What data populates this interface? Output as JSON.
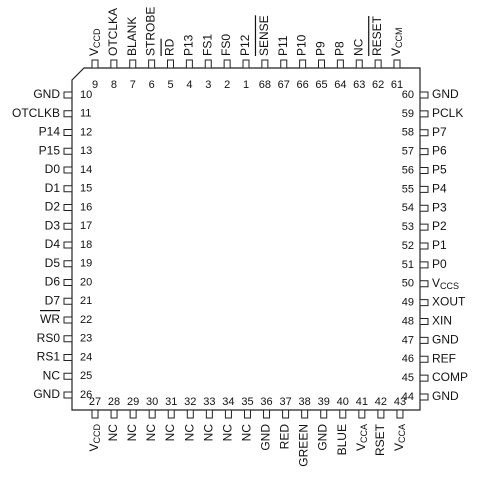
{
  "pins": {
    "top": [
      {
        "number": 9,
        "label": "V",
        "sub": "CCD"
      },
      {
        "number": 8,
        "label": "OTCLKA"
      },
      {
        "number": 7,
        "label": "BLANK"
      },
      {
        "number": 6,
        "label": "STROBE"
      },
      {
        "number": 5,
        "label": "RD",
        "overline": true
      },
      {
        "number": 4,
        "label": "P13"
      },
      {
        "number": 3,
        "label": "FS1"
      },
      {
        "number": 2,
        "label": "FS0"
      },
      {
        "number": 1,
        "label": "P12"
      },
      {
        "number": 68,
        "label": "SENSE",
        "overline": true
      },
      {
        "number": 67,
        "label": "P11"
      },
      {
        "number": 66,
        "label": "P10"
      },
      {
        "number": 65,
        "label": "P9"
      },
      {
        "number": 64,
        "label": "P8"
      },
      {
        "number": 63,
        "label": "NC"
      },
      {
        "number": 62,
        "label": "RESET",
        "overline": true
      },
      {
        "number": 61,
        "label": "V",
        "sub": "CCM"
      }
    ],
    "left": [
      {
        "number": 10,
        "label": "GND"
      },
      {
        "number": 11,
        "label": "OTCLKB"
      },
      {
        "number": 12,
        "label": "P14"
      },
      {
        "number": 13,
        "label": "P15"
      },
      {
        "number": 14,
        "label": "D0"
      },
      {
        "number": 15,
        "label": "D1"
      },
      {
        "number": 16,
        "label": "D2"
      },
      {
        "number": 17,
        "label": "D3"
      },
      {
        "number": 18,
        "label": "D4"
      },
      {
        "number": 19,
        "label": "D5"
      },
      {
        "number": 20,
        "label": "D6"
      },
      {
        "number": 21,
        "label": "D7"
      },
      {
        "number": 22,
        "label": "WR",
        "overline": true
      },
      {
        "number": 23,
        "label": "RS0"
      },
      {
        "number": 24,
        "label": "RS1"
      },
      {
        "number": 25,
        "label": "NC"
      },
      {
        "number": 26,
        "label": "GND"
      }
    ],
    "right": [
      {
        "number": 60,
        "label": "GND"
      },
      {
        "number": 59,
        "label": "PCLK"
      },
      {
        "number": 58,
        "label": "P7"
      },
      {
        "number": 57,
        "label": "P6"
      },
      {
        "number": 56,
        "label": "P5"
      },
      {
        "number": 55,
        "label": "P4"
      },
      {
        "number": 54,
        "label": "P3"
      },
      {
        "number": 53,
        "label": "P2"
      },
      {
        "number": 52,
        "label": "P1"
      },
      {
        "number": 51,
        "label": "P0"
      },
      {
        "number": 50,
        "label": "V",
        "sub": "CCS"
      },
      {
        "number": 49,
        "label": "XOUT"
      },
      {
        "number": 48,
        "label": "XIN"
      },
      {
        "number": 47,
        "label": "GND"
      },
      {
        "number": 46,
        "label": "REF"
      },
      {
        "number": 45,
        "label": "COMP"
      },
      {
        "number": 44,
        "label": "GND"
      }
    ],
    "bottom": [
      {
        "number": 27,
        "label": "V",
        "sub": "CCD"
      },
      {
        "number": 28,
        "label": "NC"
      },
      {
        "number": 29,
        "label": "NC"
      },
      {
        "number": 30,
        "label": "NC"
      },
      {
        "number": 31,
        "label": "NC"
      },
      {
        "number": 32,
        "label": "NC"
      },
      {
        "number": 33,
        "label": "NC"
      },
      {
        "number": 34,
        "label": "NC"
      },
      {
        "number": 35,
        "label": "NC"
      },
      {
        "number": 36,
        "label": "GND"
      },
      {
        "number": 37,
        "label": "RED"
      },
      {
        "number": 38,
        "label": "GREEN"
      },
      {
        "number": 39,
        "label": "GND"
      },
      {
        "number": 40,
        "label": "BLUE"
      },
      {
        "number": 41,
        "label": "V",
        "sub": "CCA"
      },
      {
        "number": 42,
        "label": "RSET"
      },
      {
        "number": 43,
        "label": "V",
        "sub": "CCA"
      }
    ]
  }
}
